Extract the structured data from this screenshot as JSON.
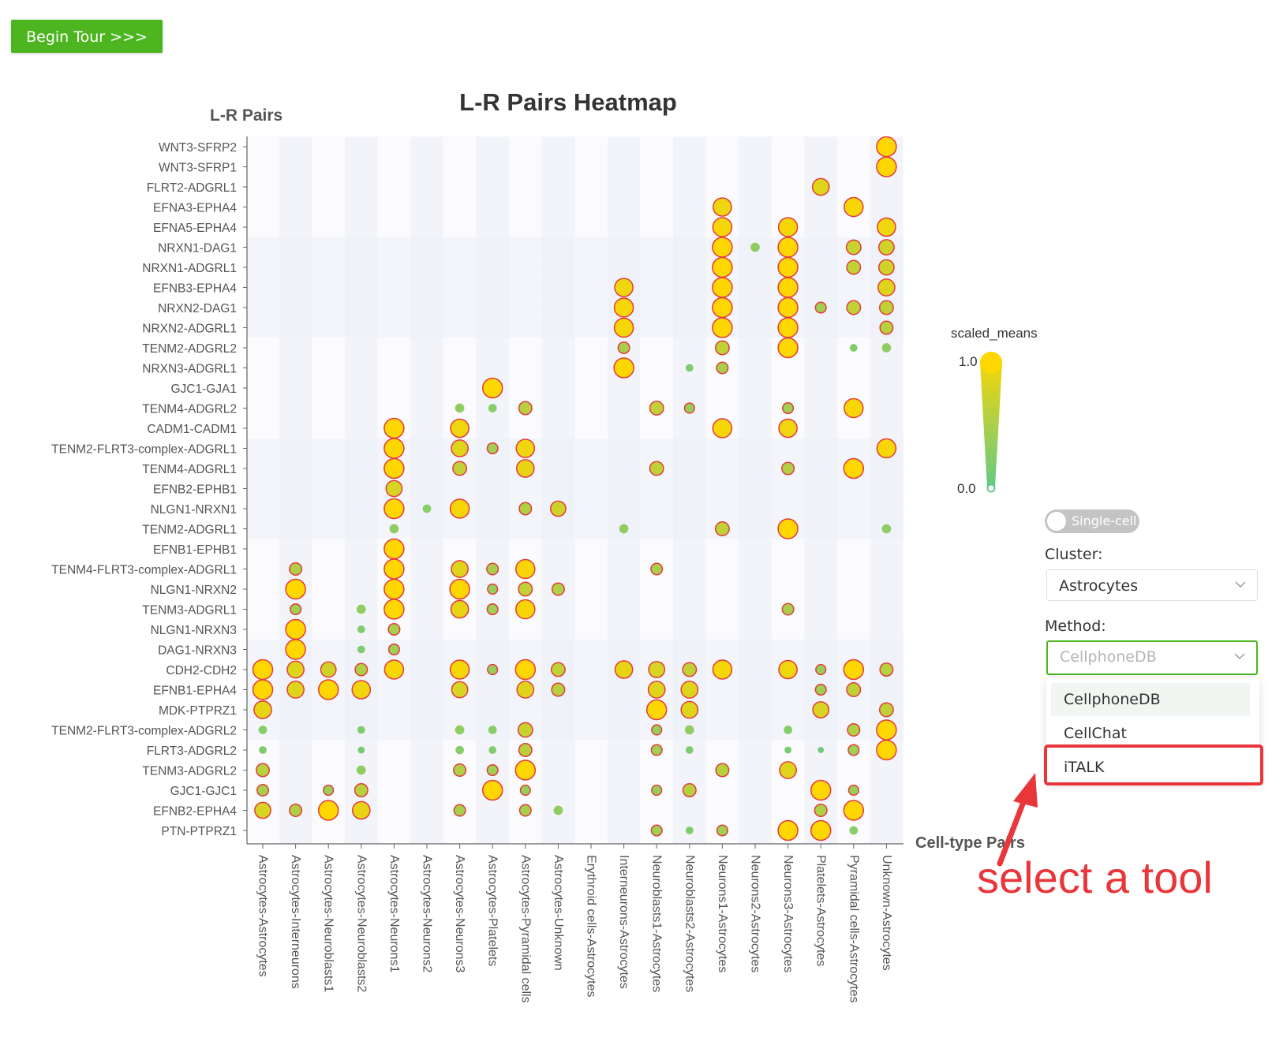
{
  "header": {
    "tour_label": "Begin Tour >>>"
  },
  "chart_data": {
    "type": "scatter",
    "title": "L-R Pairs Heatmap",
    "ylabel": "L-R Pairs",
    "xlabel": "Cell-type Pairs",
    "visual_map": {
      "title": "scaled_means",
      "min": "0.0",
      "max": "1.0",
      "min_color": "#5fc98a",
      "max_color": "#ffd700"
    },
    "x_categories": [
      "Astrocytes-Astrocytes",
      "Astrocytes-Interneurons",
      "Astrocytes-Neuroblasts1",
      "Astrocytes-Neuroblasts2",
      "Astrocytes-Neurons1",
      "Astrocytes-Neurons2",
      "Astrocytes-Neurons3",
      "Astrocytes-Platelets",
      "Astrocytes-Pyramidal cells",
      "Astrocytes-Unknown",
      "Erythroid cells-Astrocytes",
      "Interneurons-Astrocytes",
      "Neuroblasts1-Astrocytes",
      "Neuroblasts2-Astrocytes",
      "Neurons1-Astrocytes",
      "Neurons2-Astrocytes",
      "Neurons3-Astrocytes",
      "Platelets-Astrocytes",
      "Pyramidal cells-Astrocytes",
      "Unknown-Astrocytes"
    ],
    "y_categories": [
      "WNT3-SFRP2",
      "WNT3-SFRP1",
      "FLRT2-ADGRL1",
      "EFNA3-EPHA4",
      "EFNA5-EPHA4",
      "NRXN1-DAG1",
      "NRXN1-ADGRL1",
      "EFNB3-EPHA4",
      "NRXN2-DAG1",
      "NRXN2-ADGRL1",
      "TENM2-ADGRL2",
      "NRXN3-ADGRL1",
      "GJC1-GJA1",
      "TENM4-ADGRL2",
      "CADM1-CADM1",
      "TENM2-FLRT3-complex-ADGRL1",
      "TENM4-ADGRL1",
      "EFNB2-EPHB1",
      "NLGN1-NRXN1",
      "TENM2-ADGRL1",
      "EFNB1-EPHB1",
      "TENM4-FLRT3-complex-ADGRL1",
      "NLGN1-NRXN2",
      "TENM3-ADGRL1",
      "NLGN1-NRXN3",
      "DAG1-NRXN3",
      "CDH2-CDH2",
      "EFNB1-EPHA4",
      "MDK-PTPRZ1",
      "TENM2-FLRT3-complex-ADGRL2",
      "FLRT3-ADGRL2",
      "TENM3-ADGRL2",
      "GJC1-GJC1",
      "EFNB2-EPHA4",
      "PTN-PTPRZ1"
    ],
    "points": [
      [
        19,
        0,
        1.0
      ],
      [
        19,
        1,
        1.0
      ],
      [
        17,
        2,
        0.8
      ],
      [
        14,
        3,
        0.9
      ],
      [
        18,
        3,
        0.95
      ],
      [
        14,
        4,
        0.95
      ],
      [
        16,
        4,
        0.95
      ],
      [
        19,
        4,
        0.9
      ],
      [
        14,
        5,
        1.0
      ],
      [
        15,
        5,
        0.3
      ],
      [
        16,
        5,
        1.0
      ],
      [
        18,
        5,
        0.65
      ],
      [
        19,
        5,
        0.7
      ],
      [
        14,
        6,
        1.0
      ],
      [
        16,
        6,
        1.0
      ],
      [
        18,
        6,
        0.6
      ],
      [
        19,
        6,
        0.7
      ],
      [
        11,
        7,
        0.9
      ],
      [
        14,
        7,
        1.0
      ],
      [
        16,
        7,
        1.0
      ],
      [
        19,
        7,
        0.8
      ],
      [
        11,
        8,
        0.95
      ],
      [
        14,
        8,
        1.0
      ],
      [
        16,
        8,
        1.0
      ],
      [
        17,
        8,
        0.4
      ],
      [
        18,
        8,
        0.6
      ],
      [
        19,
        8,
        0.6
      ],
      [
        11,
        9,
        0.95
      ],
      [
        14,
        9,
        1.0
      ],
      [
        16,
        9,
        1.0
      ],
      [
        19,
        9,
        0.55
      ],
      [
        11,
        10,
        0.45
      ],
      [
        14,
        10,
        0.6
      ],
      [
        16,
        10,
        1.0
      ],
      [
        18,
        10,
        0.2
      ],
      [
        19,
        10,
        0.3
      ],
      [
        11,
        11,
        1.0
      ],
      [
        13,
        11,
        0.2
      ],
      [
        14,
        11,
        0.45
      ],
      [
        7,
        12,
        1.0
      ],
      [
        6,
        13,
        0.3
      ],
      [
        7,
        13,
        0.25
      ],
      [
        8,
        13,
        0.55
      ],
      [
        12,
        13,
        0.6
      ],
      [
        13,
        13,
        0.35
      ],
      [
        16,
        13,
        0.4
      ],
      [
        18,
        13,
        0.95
      ],
      [
        4,
        14,
        1.0
      ],
      [
        6,
        14,
        0.9
      ],
      [
        14,
        14,
        0.95
      ],
      [
        16,
        14,
        0.9
      ],
      [
        4,
        15,
        1.0
      ],
      [
        6,
        15,
        0.8
      ],
      [
        7,
        15,
        0.4
      ],
      [
        8,
        15,
        0.9
      ],
      [
        19,
        15,
        0.95
      ],
      [
        4,
        16,
        1.0
      ],
      [
        6,
        16,
        0.6
      ],
      [
        8,
        16,
        0.85
      ],
      [
        12,
        16,
        0.6
      ],
      [
        16,
        16,
        0.5
      ],
      [
        18,
        16,
        1.0
      ],
      [
        4,
        17,
        0.75
      ],
      [
        4,
        18,
        1.0
      ],
      [
        5,
        18,
        0.25
      ],
      [
        6,
        18,
        0.95
      ],
      [
        8,
        18,
        0.5
      ],
      [
        9,
        18,
        0.7
      ],
      [
        4,
        19,
        0.3
      ],
      [
        11,
        19,
        0.3
      ],
      [
        14,
        19,
        0.6
      ],
      [
        16,
        19,
        1.0
      ],
      [
        19,
        19,
        0.3
      ],
      [
        4,
        20,
        1.0
      ],
      [
        1,
        21,
        0.5
      ],
      [
        4,
        21,
        1.0
      ],
      [
        6,
        21,
        0.8
      ],
      [
        7,
        21,
        0.45
      ],
      [
        8,
        21,
        0.95
      ],
      [
        12,
        21,
        0.45
      ],
      [
        1,
        22,
        1.0
      ],
      [
        4,
        22,
        1.0
      ],
      [
        6,
        22,
        1.0
      ],
      [
        7,
        22,
        0.35
      ],
      [
        8,
        22,
        0.6
      ],
      [
        9,
        22,
        0.5
      ],
      [
        1,
        23,
        0.4
      ],
      [
        3,
        23,
        0.3
      ],
      [
        4,
        23,
        1.0
      ],
      [
        6,
        23,
        0.85
      ],
      [
        7,
        23,
        0.4
      ],
      [
        8,
        23,
        0.95
      ],
      [
        16,
        23,
        0.45
      ],
      [
        1,
        24,
        1.0
      ],
      [
        3,
        24,
        0.2
      ],
      [
        4,
        24,
        0.45
      ],
      [
        1,
        25,
        1.0
      ],
      [
        3,
        25,
        0.2
      ],
      [
        4,
        25,
        0.4
      ],
      [
        0,
        26,
        1.0
      ],
      [
        1,
        26,
        0.8
      ],
      [
        2,
        26,
        0.7
      ],
      [
        3,
        26,
        0.5
      ],
      [
        4,
        26,
        0.95
      ],
      [
        6,
        26,
        0.95
      ],
      [
        7,
        26,
        0.35
      ],
      [
        8,
        26,
        1.0
      ],
      [
        9,
        26,
        0.6
      ],
      [
        11,
        26,
        0.85
      ],
      [
        12,
        26,
        0.75
      ],
      [
        13,
        26,
        0.6
      ],
      [
        14,
        26,
        0.95
      ],
      [
        16,
        26,
        0.9
      ],
      [
        17,
        26,
        0.35
      ],
      [
        18,
        26,
        1.0
      ],
      [
        19,
        26,
        0.55
      ],
      [
        0,
        27,
        1.0
      ],
      [
        1,
        27,
        0.8
      ],
      [
        2,
        27,
        1.0
      ],
      [
        3,
        27,
        0.9
      ],
      [
        6,
        27,
        0.75
      ],
      [
        8,
        27,
        0.8
      ],
      [
        9,
        27,
        0.55
      ],
      [
        12,
        27,
        0.8
      ],
      [
        13,
        27,
        0.8
      ],
      [
        17,
        27,
        0.4
      ],
      [
        18,
        27,
        0.6
      ],
      [
        0,
        28,
        0.85
      ],
      [
        12,
        28,
        1.0
      ],
      [
        13,
        28,
        0.8
      ],
      [
        17,
        28,
        0.75
      ],
      [
        19,
        28,
        0.6
      ],
      [
        0,
        29,
        0.25
      ],
      [
        3,
        29,
        0.2
      ],
      [
        6,
        29,
        0.3
      ],
      [
        7,
        29,
        0.25
      ],
      [
        8,
        29,
        0.65
      ],
      [
        12,
        29,
        0.35
      ],
      [
        13,
        29,
        0.3
      ],
      [
        16,
        29,
        0.25
      ],
      [
        18,
        29,
        0.5
      ],
      [
        19,
        29,
        1.0
      ],
      [
        0,
        30,
        0.2
      ],
      [
        3,
        30,
        0.15
      ],
      [
        6,
        30,
        0.25
      ],
      [
        7,
        30,
        0.2
      ],
      [
        8,
        30,
        0.55
      ],
      [
        12,
        30,
        0.4
      ],
      [
        13,
        30,
        0.2
      ],
      [
        16,
        30,
        0.15
      ],
      [
        17,
        30,
        0.1
      ],
      [
        18,
        30,
        0.4
      ],
      [
        19,
        30,
        1.0
      ],
      [
        0,
        31,
        0.55
      ],
      [
        3,
        31,
        0.3
      ],
      [
        6,
        31,
        0.5
      ],
      [
        7,
        31,
        0.4
      ],
      [
        8,
        31,
        1.0
      ],
      [
        14,
        31,
        0.55
      ],
      [
        16,
        31,
        0.8
      ],
      [
        0,
        32,
        0.45
      ],
      [
        2,
        32,
        0.35
      ],
      [
        3,
        32,
        0.55
      ],
      [
        7,
        32,
        1.0
      ],
      [
        8,
        32,
        0.35
      ],
      [
        12,
        32,
        0.35
      ],
      [
        13,
        32,
        0.55
      ],
      [
        17,
        32,
        1.0
      ],
      [
        18,
        32,
        0.35
      ],
      [
        0,
        33,
        0.75
      ],
      [
        1,
        33,
        0.5
      ],
      [
        2,
        33,
        1.0
      ],
      [
        3,
        33,
        0.85
      ],
      [
        6,
        33,
        0.45
      ],
      [
        8,
        33,
        0.45
      ],
      [
        9,
        33,
        0.3
      ],
      [
        17,
        33,
        0.5
      ],
      [
        18,
        33,
        1.0
      ],
      [
        12,
        34,
        0.4
      ],
      [
        13,
        34,
        0.2
      ],
      [
        14,
        34,
        0.4
      ],
      [
        16,
        34,
        1.0
      ],
      [
        17,
        34,
        1.0
      ],
      [
        18,
        34,
        0.25
      ]
    ]
  },
  "controls": {
    "mode_toggle": {
      "label": "Single-cell"
    },
    "cluster": {
      "label": "Cluster:",
      "value": "Astrocytes"
    },
    "method": {
      "label": "Method:",
      "placeholder": "CellphoneDB",
      "options": [
        "CellphoneDB",
        "CellChat",
        "iTALK"
      ]
    }
  },
  "annotation": {
    "text": "select a tool",
    "color": "#e8363a"
  }
}
